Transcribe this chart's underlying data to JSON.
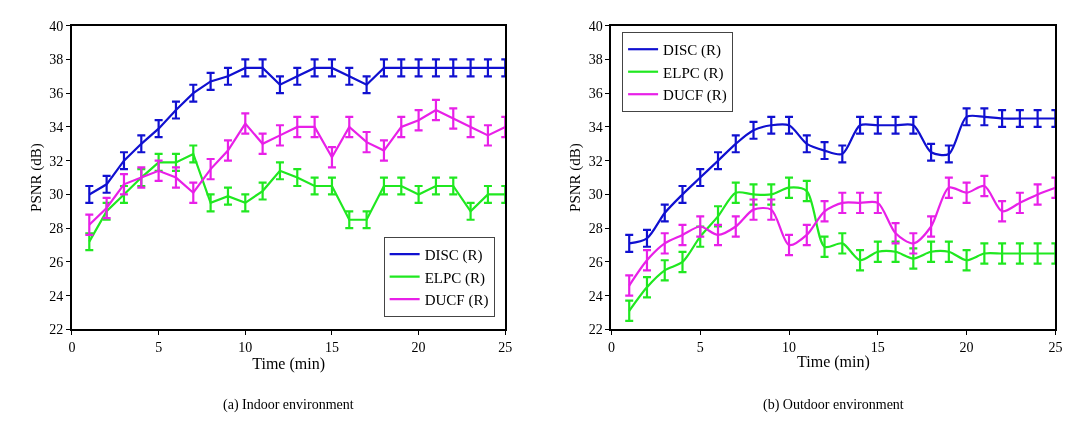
{
  "chart_data": [
    {
      "type": "line",
      "xlabel": "Time (min)",
      "ylabel": "PSNR (dB)",
      "annotations": [
        "(a) Indoor environment"
      ],
      "x": [
        1,
        2,
        3,
        4,
        5,
        6,
        7,
        8,
        9,
        10,
        11,
        12,
        13,
        14,
        15,
        16,
        17,
        18,
        19,
        20,
        21,
        22,
        23,
        24,
        25
      ],
      "xlim": [
        0,
        25
      ],
      "xticks": [
        0,
        5,
        10,
        15,
        20,
        25
      ],
      "ylim": [
        22,
        40
      ],
      "yticks": [
        22,
        24,
        26,
        28,
        30,
        32,
        34,
        36,
        38,
        40
      ],
      "grid": false,
      "legend": "bottom right",
      "marker": "none",
      "line_style": "solid",
      "series": [
        {
          "name": "DISC (R)",
          "color": "#1010d0",
          "values": [
            30,
            30.6,
            32,
            33,
            33.9,
            35,
            36,
            36.7,
            37,
            37.5,
            37.5,
            36.5,
            37,
            37.5,
            37.5,
            37,
            36.5,
            37.5,
            37.5,
            37.5,
            37.5,
            37.5,
            37.5,
            37.5,
            37.5
          ],
          "errors": [
            0.5,
            0.5,
            0.5,
            0.5,
            0.5,
            0.5,
            0.5,
            0.5,
            0.5,
            0.5,
            0.5,
            0.5,
            0.5,
            0.5,
            0.5,
            0.5,
            0.5,
            0.5,
            0.5,
            0.5,
            0.5,
            0.5,
            0.5,
            0.5,
            0.5
          ]
        },
        {
          "name": "ELPC (R)",
          "color": "#20e820",
          "values": [
            27.2,
            29,
            30,
            31,
            31.9,
            31.9,
            32.4,
            29.5,
            29.9,
            29.5,
            30.2,
            31.4,
            31,
            30.5,
            30.5,
            28.5,
            28.5,
            30.5,
            30.5,
            30,
            30.5,
            30.5,
            29,
            30,
            30
          ],
          "errors": [
            0.5,
            0.5,
            0.5,
            0.5,
            0.5,
            0.5,
            0.5,
            0.5,
            0.5,
            0.5,
            0.5,
            0.5,
            0.5,
            0.5,
            0.5,
            0.5,
            0.5,
            0.5,
            0.5,
            0.5,
            0.5,
            0.5,
            0.5,
            0.5,
            0.5
          ]
        },
        {
          "name": "DUCF (R)",
          "color": "#e820e8",
          "values": [
            28.2,
            29.2,
            30.6,
            31,
            31.4,
            31,
            30.1,
            31.5,
            32.6,
            34.2,
            33,
            33.5,
            34,
            34,
            32.2,
            34,
            33.1,
            32.6,
            34,
            34.4,
            35,
            34.5,
            34,
            33.5,
            34
          ],
          "errors": [
            0.6,
            0.6,
            0.6,
            0.6,
            0.6,
            0.6,
            0.6,
            0.6,
            0.6,
            0.6,
            0.6,
            0.6,
            0.6,
            0.6,
            0.6,
            0.6,
            0.6,
            0.6,
            0.6,
            0.6,
            0.6,
            0.6,
            0.6,
            0.6,
            0.6
          ]
        }
      ]
    },
    {
      "type": "line",
      "xlabel": "Time (min)",
      "ylabel": "PSNR (dB)",
      "annotations": [
        "(b) Outdoor environment"
      ],
      "x": [
        1,
        2,
        3,
        4,
        5,
        6,
        7,
        8,
        9,
        10,
        11,
        12,
        13,
        14,
        15,
        16,
        17,
        18,
        19,
        20,
        21,
        22,
        23,
        24,
        25
      ],
      "xlim": [
        0,
        25
      ],
      "xticks": [
        0,
        5,
        10,
        15,
        20,
        25
      ],
      "ylim": [
        22,
        40
      ],
      "yticks": [
        22,
        24,
        26,
        28,
        30,
        32,
        34,
        36,
        38,
        40
      ],
      "grid": false,
      "legend": "top left",
      "marker": "none",
      "line_style": "solid",
      "series": [
        {
          "name": "DISC (R)",
          "color": "#1010d0",
          "values": [
            27.1,
            27.4,
            28.9,
            30,
            31,
            32,
            33,
            33.8,
            34.1,
            34.1,
            33,
            32.6,
            32.4,
            34.1,
            34.1,
            34.1,
            34.1,
            32.5,
            32.4,
            34.6,
            34.6,
            34.5,
            34.5,
            34.5,
            34.5
          ],
          "errors": [
            0.5,
            0.5,
            0.5,
            0.5,
            0.5,
            0.5,
            0.5,
            0.5,
            0.5,
            0.5,
            0.5,
            0.5,
            0.5,
            0.5,
            0.5,
            0.5,
            0.5,
            0.5,
            0.5,
            0.5,
            0.5,
            0.5,
            0.5,
            0.5,
            0.5
          ]
        },
        {
          "name": "ELPC (R)",
          "color": "#20e820",
          "values": [
            23.1,
            24.5,
            25.5,
            26,
            27.5,
            28.7,
            30.1,
            30,
            30,
            30.4,
            30.2,
            26.9,
            27.1,
            26.1,
            26.6,
            26.6,
            26.2,
            26.6,
            26.6,
            26.1,
            26.5,
            26.5,
            26.5,
            26.5,
            26.5
          ],
          "errors": [
            0.6,
            0.6,
            0.6,
            0.6,
            0.6,
            0.6,
            0.6,
            0.6,
            0.6,
            0.6,
            0.6,
            0.6,
            0.6,
            0.6,
            0.6,
            0.6,
            0.6,
            0.6,
            0.6,
            0.6,
            0.6,
            0.6,
            0.6,
            0.6,
            0.6
          ]
        },
        {
          "name": "DUCF (R)",
          "color": "#e820e8",
          "values": [
            24.6,
            26.1,
            27.1,
            27.6,
            28.1,
            27.6,
            28.1,
            29.1,
            29.1,
            27,
            27.6,
            29,
            29.5,
            29.5,
            29.5,
            27.7,
            27.1,
            28.1,
            30.4,
            30.1,
            30.5,
            29,
            29.5,
            30,
            30.4
          ],
          "errors": [
            0.6,
            0.6,
            0.6,
            0.6,
            0.6,
            0.6,
            0.6,
            0.6,
            0.6,
            0.6,
            0.6,
            0.6,
            0.6,
            0.6,
            0.6,
            0.6,
            0.6,
            0.6,
            0.6,
            0.6,
            0.6,
            0.6,
            0.6,
            0.6,
            0.6
          ]
        }
      ]
    }
  ]
}
